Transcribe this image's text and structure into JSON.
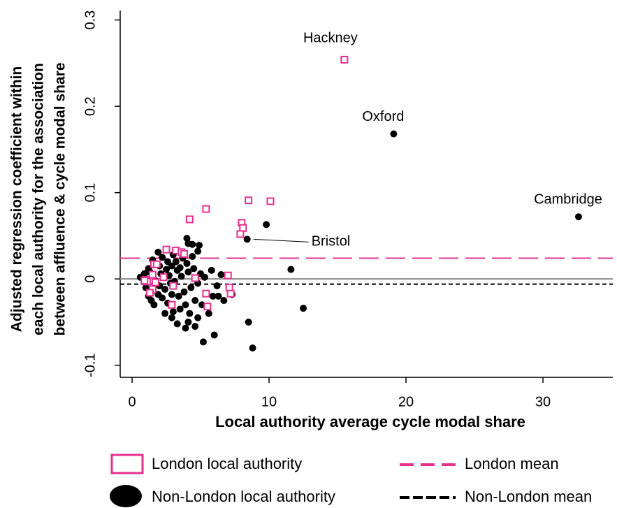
{
  "chart_data": {
    "type": "scatter",
    "xlabel": "Local authority average cycle modal share",
    "ylabel": [
      "Adjusted regression coefficient within",
      "each local authority  for the association",
      "between affluence & cycle modal share"
    ],
    "xlim": [
      -0.87,
      35.1
    ],
    "ylim": [
      -0.114,
      0.311
    ],
    "xticks": [
      0,
      10,
      20,
      30
    ],
    "yticks": [
      -0.1,
      0,
      0.1,
      0.2,
      0.3
    ],
    "reference_line": {
      "value": 0,
      "color": "#888888"
    },
    "series": [
      {
        "name": "London local authority",
        "color": "#e6308f",
        "marker": "square",
        "x": [
          15.5,
          5.4,
          4.2,
          8.5,
          10.1,
          8.0,
          8.1,
          7.9,
          2.5,
          3.2,
          3.6,
          3.8,
          1.0,
          1.4,
          1.6,
          1.8,
          1.5,
          2.3,
          1.7,
          1.5,
          1.3,
          3.0,
          4.6,
          2.9,
          5.4,
          5.5,
          7.0,
          7.1,
          7.2,
          1.1,
          0.9
        ],
        "y": [
          0.254,
          0.081,
          0.069,
          0.091,
          0.09,
          0.065,
          0.059,
          0.052,
          0.034,
          0.033,
          0.031,
          0.029,
          -0.001,
          -0.002,
          0.017,
          0.017,
          0.005,
          0.002,
          -0.004,
          -0.012,
          -0.016,
          -0.008,
          0.001,
          -0.03,
          -0.017,
          -0.032,
          0.004,
          -0.01,
          -0.017,
          -0.003,
          -0.002
        ]
      },
      {
        "name": "Non-London local authority",
        "color": "#000000",
        "marker": "circle",
        "x": [
          19.1,
          32.6,
          9.8,
          8.4,
          11.6,
          12.5,
          8.5,
          8.8,
          6.0,
          5.2,
          4.0,
          4.4,
          4.9,
          4.1,
          6.3,
          6.7,
          7.3,
          6.5,
          4.1,
          4.6,
          3.9,
          3.3,
          2.9,
          2.4,
          1.6,
          1.2,
          0.6,
          0.9,
          1.2,
          1.5,
          1.9,
          2.2,
          2.6,
          2.9,
          3.3,
          3.7,
          4.0,
          4.5,
          5.0,
          5.3,
          4.8,
          4.3,
          3.8,
          3.4,
          2.9,
          2.4,
          2.0,
          1.7,
          2.1,
          2.7,
          3.1,
          3.6,
          4.1,
          3.9,
          3.5,
          3.0,
          2.6,
          2.2,
          1.9,
          4.6,
          5.1,
          5.6,
          5.9,
          6.2,
          5.8,
          1.3,
          2.5,
          3.2,
          4.4,
          4.8,
          3.0,
          1.0,
          4.2,
          4.8,
          2.0,
          2.8,
          3.5,
          1.4
        ],
        "y": [
          0.168,
          0.072,
          0.063,
          0.046,
          0.011,
          -0.034,
          -0.05,
          -0.08,
          -0.065,
          -0.073,
          0.047,
          0.04,
          0.039,
          0.041,
          -0.02,
          -0.025,
          -0.018,
          0.005,
          -0.05,
          -0.055,
          -0.057,
          -0.052,
          -0.045,
          -0.04,
          -0.03,
          -0.02,
          0.002,
          0.006,
          0.012,
          0.022,
          0.031,
          0.025,
          0.02,
          0.015,
          0.01,
          0.024,
          0.018,
          0.012,
          0.006,
          0.002,
          -0.005,
          -0.01,
          -0.015,
          -0.02,
          -0.018,
          -0.012,
          -0.008,
          -0.002,
          0.006,
          0.004,
          -0.003,
          0.003,
          0.008,
          -0.03,
          -0.035,
          -0.038,
          -0.028,
          -0.022,
          -0.018,
          -0.025,
          -0.03,
          -0.04,
          -0.02,
          -0.008,
          0.01,
          0.008,
          0.011,
          0.02,
          0.026,
          0.032,
          0.028,
          -0.01,
          -0.04,
          -0.045,
          0.015,
          -0.005,
          0.013,
          -0.025
        ]
      }
    ],
    "lines": [
      {
        "name": "London mean",
        "color": "#e6308f",
        "value": 0.024,
        "dash": "long"
      },
      {
        "name": "Non-London mean",
        "color": "#000000",
        "value": -0.006,
        "dash": "short"
      }
    ],
    "annotations": [
      {
        "text": "Hackney",
        "x": 15.5,
        "y": 0.254
      },
      {
        "text": "Oxford",
        "x": 19.1,
        "y": 0.168
      },
      {
        "text": "Cambridge",
        "x": 32.6,
        "y": 0.072
      },
      {
        "text": "Bristol",
        "x": 8.4,
        "y": 0.046
      }
    ]
  }
}
